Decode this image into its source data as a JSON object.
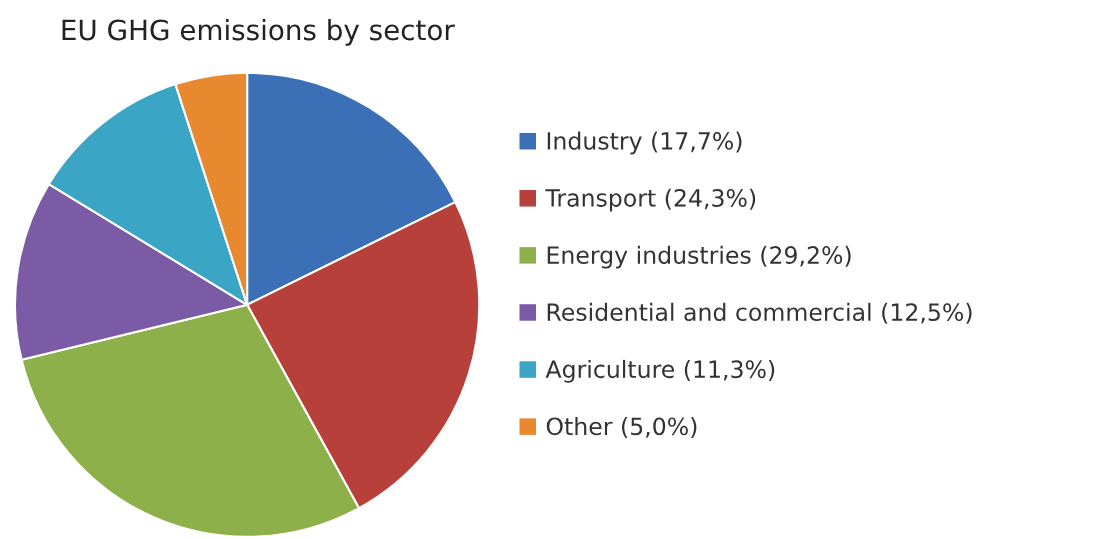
{
  "chart_data": {
    "type": "pie",
    "title": "EU GHG emissions by sector",
    "categories": [
      "Industry (17,7%)",
      "Transport (24,3%)",
      "Energy industries (29,2%)",
      "Residential and commercial (12,5%)",
      "Agriculture (11,3%)",
      "Other (5,0%)"
    ],
    "values": [
      17.7,
      24.3,
      29.2,
      12.5,
      11.3,
      5.0
    ],
    "colors": [
      "#3b6fb6",
      "#b8403a",
      "#8db04a",
      "#7b5aa6",
      "#3aa5c4",
      "#e8892f"
    ],
    "legend": "right"
  }
}
